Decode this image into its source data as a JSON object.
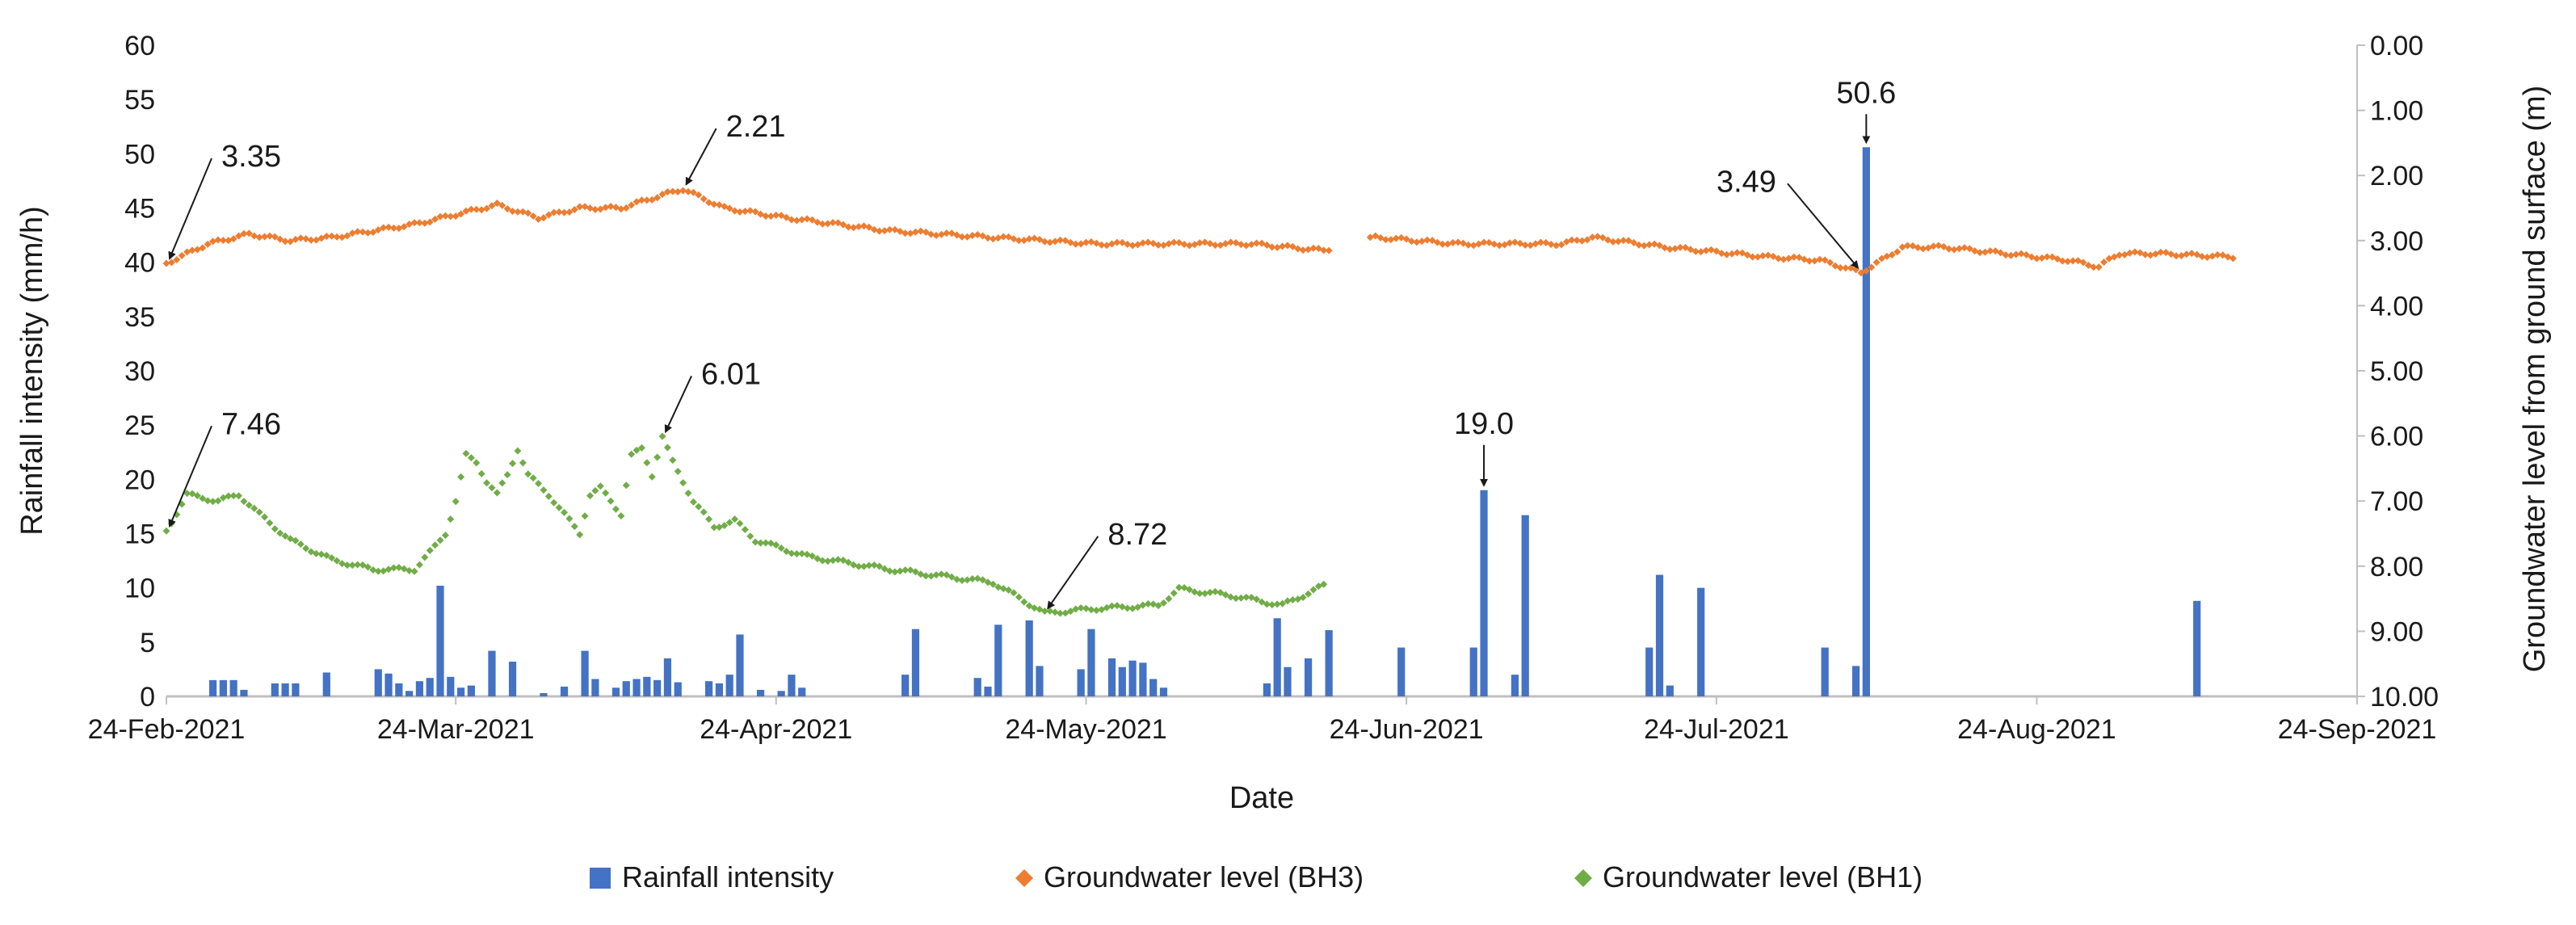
{
  "chart_data": {
    "type": "bar+scatter",
    "xlabel": "Date",
    "ylabel_left": "Rainfall intensity (mm/h)",
    "ylabel_right": "Groundwater level from ground surface (m)",
    "ylim_left": [
      0,
      60
    ],
    "ylim_right": [
      0,
      10
    ],
    "right_axis_inverted": true,
    "x_start": "2021-02-24",
    "x_end": "2021-09-24",
    "x_ticks": [
      "24-Feb-2021",
      "24-Mar-2021",
      "24-Apr-2021",
      "24-May-2021",
      "24-Jun-2021",
      "24-Jul-2021",
      "24-Aug-2021",
      "24-Sep-2021"
    ],
    "x_tick_dates": [
      "2021-02-24",
      "2021-03-24",
      "2021-04-24",
      "2021-05-24",
      "2021-06-24",
      "2021-07-24",
      "2021-08-24",
      "2021-09-24"
    ],
    "y_ticks_left": [
      "0",
      "5",
      "10",
      "15",
      "20",
      "25",
      "30",
      "35",
      "40",
      "45",
      "50",
      "55",
      "60"
    ],
    "y_ticks_right": [
      "0.00",
      "1.00",
      "2.00",
      "3.00",
      "4.00",
      "5.00",
      "6.00",
      "7.00",
      "8.00",
      "9.00",
      "10.00"
    ],
    "legend": [
      "Rainfall intensity",
      "Groundwater level (BH3)",
      "Groundwater level (BH1)"
    ],
    "colors": {
      "rain": "#4472c4",
      "bh3": "#ed7d31",
      "bh1": "#70ad47",
      "axis": "#bfbfbf",
      "text": "#1a1a1a"
    },
    "rainfall_series_name": "Rainfall intensity",
    "rainfall": [
      [
        4,
        1.5
      ],
      [
        5,
        1.5
      ],
      [
        6,
        1.5
      ],
      [
        7,
        0.6
      ],
      [
        10,
        1.2
      ],
      [
        11,
        1.2
      ],
      [
        12,
        1.2
      ],
      [
        15,
        2.2
      ],
      [
        20,
        2.5
      ],
      [
        21,
        2.1
      ],
      [
        22,
        1.2
      ],
      [
        23,
        0.5
      ],
      [
        24,
        1.4
      ],
      [
        25,
        1.7
      ],
      [
        26,
        10.2
      ],
      [
        27,
        1.8
      ],
      [
        28,
        0.8
      ],
      [
        29,
        1.0
      ],
      [
        31,
        4.2
      ],
      [
        33,
        3.2
      ],
      [
        36,
        0.3
      ],
      [
        38,
        0.9
      ],
      [
        40,
        4.2
      ],
      [
        41,
        1.6
      ],
      [
        43,
        0.8
      ],
      [
        44,
        1.4
      ],
      [
        45,
        1.6
      ],
      [
        46,
        1.8
      ],
      [
        47,
        1.5
      ],
      [
        48,
        3.5
      ],
      [
        49,
        1.3
      ],
      [
        52,
        1.4
      ],
      [
        53,
        1.2
      ],
      [
        54,
        2.0
      ],
      [
        55,
        5.7
      ],
      [
        57,
        0.6
      ],
      [
        59,
        0.5
      ],
      [
        60,
        2.0
      ],
      [
        61,
        0.8
      ],
      [
        71,
        2.0
      ],
      [
        72,
        6.2
      ],
      [
        78,
        1.7
      ],
      [
        79,
        0.9
      ],
      [
        80,
        6.6
      ],
      [
        83,
        7.0
      ],
      [
        84,
        2.8
      ],
      [
        88,
        2.5
      ],
      [
        89,
        6.2
      ],
      [
        91,
        3.5
      ],
      [
        92,
        2.7
      ],
      [
        93,
        3.3
      ],
      [
        94,
        3.1
      ],
      [
        95,
        1.6
      ],
      [
        96,
        0.8
      ],
      [
        106,
        1.2
      ],
      [
        107,
        7.2
      ],
      [
        108,
        2.7
      ],
      [
        110,
        3.5
      ],
      [
        112,
        6.1
      ],
      [
        119,
        4.5
      ],
      [
        126,
        4.5
      ],
      [
        127,
        19.0
      ],
      [
        130,
        2.0
      ],
      [
        131,
        16.7
      ],
      [
        143,
        4.5
      ],
      [
        144,
        11.2
      ],
      [
        145,
        1.0
      ],
      [
        148,
        10.0
      ],
      [
        160,
        4.5
      ],
      [
        163,
        2.8
      ],
      [
        164,
        50.6
      ],
      [
        196,
        8.8
      ]
    ],
    "bh3_series_name": "Groundwater level (BH3)",
    "bh3_knots": [
      [
        0,
        3.35
      ],
      [
        4,
        3.05
      ],
      [
        8,
        2.9
      ],
      [
        12,
        3.0
      ],
      [
        16,
        2.95
      ],
      [
        20,
        2.85
      ],
      [
        24,
        2.75
      ],
      [
        28,
        2.6
      ],
      [
        32,
        2.45
      ],
      [
        36,
        2.65
      ],
      [
        40,
        2.5
      ],
      [
        44,
        2.5
      ],
      [
        48,
        2.3
      ],
      [
        50,
        2.21
      ],
      [
        54,
        2.5
      ],
      [
        60,
        2.65
      ],
      [
        70,
        2.85
      ],
      [
        80,
        2.95
      ],
      [
        90,
        3.05
      ],
      [
        100,
        3.05
      ],
      [
        105,
        3.05
      ],
      [
        112,
        3.15
      ],
      [
        117,
        2.95
      ],
      [
        125,
        3.05
      ],
      [
        135,
        3.05
      ],
      [
        138,
        2.95
      ],
      [
        145,
        3.1
      ],
      [
        155,
        3.25
      ],
      [
        160,
        3.3
      ],
      [
        164,
        3.49
      ],
      [
        166,
        3.3
      ],
      [
        168,
        3.1
      ],
      [
        172,
        3.1
      ],
      [
        178,
        3.2
      ],
      [
        184,
        3.3
      ],
      [
        187,
        3.4
      ],
      [
        189,
        3.2
      ],
      [
        193,
        3.2
      ],
      [
        200,
        3.25
      ]
    ],
    "bh3_gap": [
      112.5,
      116.5
    ],
    "bh1_series_name": "Groundwater level (BH1)",
    "bh1_knots": [
      [
        0,
        7.46
      ],
      [
        2,
        6.9
      ],
      [
        5,
        7.0
      ],
      [
        7,
        6.9
      ],
      [
        9,
        7.2
      ],
      [
        12,
        7.6
      ],
      [
        16,
        7.9
      ],
      [
        20,
        8.05
      ],
      [
        24,
        8.05
      ],
      [
        26,
        7.7
      ],
      [
        27,
        7.5
      ],
      [
        28,
        7.0
      ],
      [
        29,
        6.3
      ],
      [
        30,
        6.4
      ],
      [
        31,
        6.7
      ],
      [
        32,
        6.9
      ],
      [
        33,
        6.6
      ],
      [
        34,
        6.2
      ],
      [
        35,
        6.6
      ],
      [
        37,
        6.9
      ],
      [
        39,
        7.3
      ],
      [
        40,
        7.5
      ],
      [
        41,
        6.9
      ],
      [
        42,
        6.8
      ],
      [
        43,
        7.0
      ],
      [
        44,
        7.2
      ],
      [
        45,
        6.3
      ],
      [
        46,
        6.2
      ],
      [
        47,
        6.6
      ],
      [
        48,
        6.01
      ],
      [
        49,
        6.4
      ],
      [
        51,
        7.0
      ],
      [
        53,
        7.4
      ],
      [
        55,
        7.3
      ],
      [
        57,
        7.6
      ],
      [
        62,
        7.85
      ],
      [
        70,
        8.05
      ],
      [
        80,
        8.25
      ],
      [
        85,
        8.72
      ],
      [
        90,
        8.65
      ],
      [
        96,
        8.6
      ],
      [
        98,
        8.35
      ],
      [
        103,
        8.45
      ],
      [
        108,
        8.6
      ],
      [
        112,
        8.3
      ]
    ],
    "annotations": [
      {
        "text": "3.35",
        "series": "bh3",
        "x": 0,
        "y": 3.35
      },
      {
        "text": "2.21",
        "series": "bh3",
        "x": 50,
        "y": 2.21
      },
      {
        "text": "3.49",
        "series": "bh3",
        "x": 164,
        "y": 3.49
      },
      {
        "text": "7.46",
        "series": "bh1",
        "x": 0,
        "y": 7.46
      },
      {
        "text": "6.01",
        "series": "bh1",
        "x": 48,
        "y": 6.01
      },
      {
        "text": "8.72",
        "series": "bh1",
        "x": 85,
        "y": 8.72
      },
      {
        "text": "19.0",
        "series": "rain",
        "x": 127,
        "y": 19.0
      },
      {
        "text": "50.6",
        "series": "rain",
        "x": 164,
        "y": 50.6
      }
    ]
  }
}
